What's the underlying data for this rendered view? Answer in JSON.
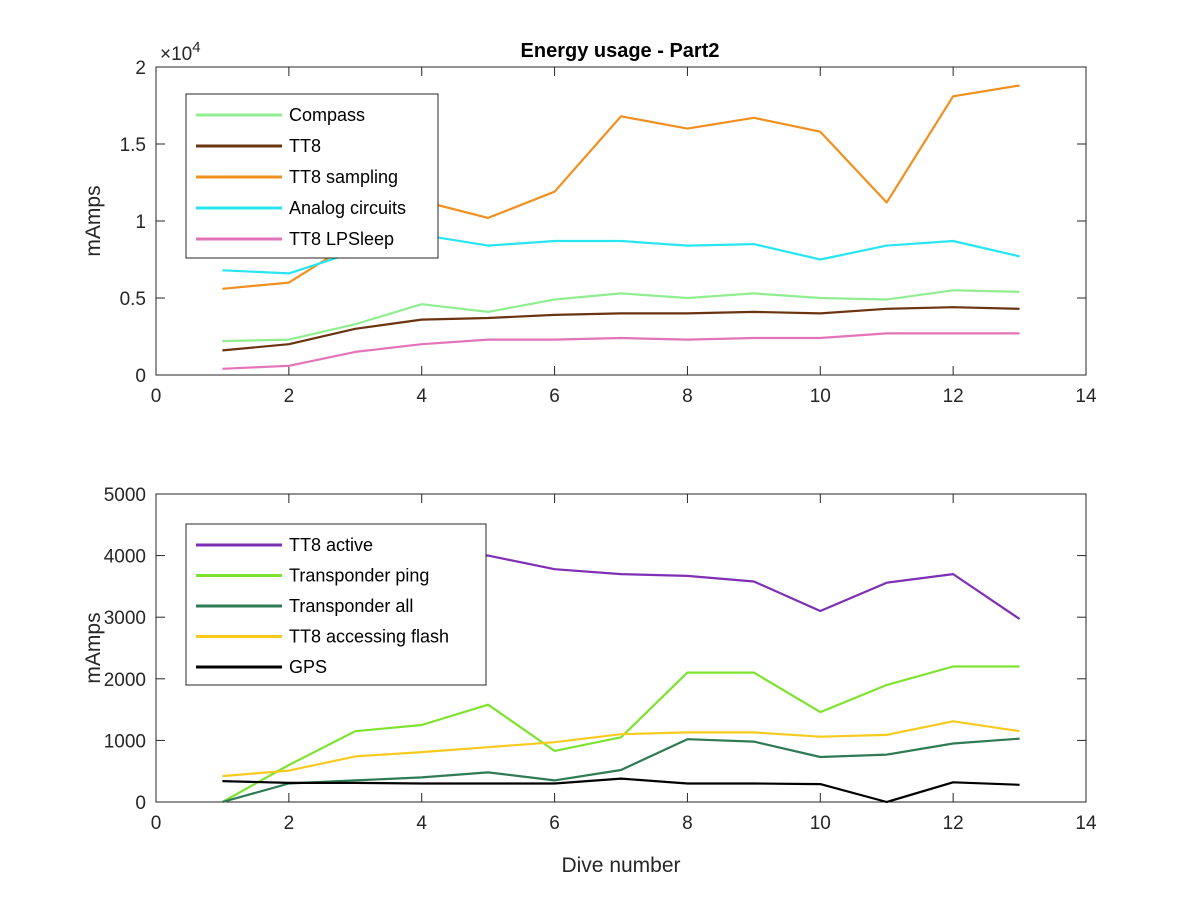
{
  "figure": {
    "title": "Energy usage - Part2"
  },
  "chart_data": [
    {
      "type": "line",
      "title": "Energy usage - Part2",
      "xlabel": "",
      "ylabel": "mAmps",
      "xlim": [
        0,
        14
      ],
      "ylim": [
        0,
        20000
      ],
      "xticks": [
        0,
        2,
        4,
        6,
        8,
        10,
        12,
        14
      ],
      "yticks": [
        0,
        5000,
        10000,
        15000,
        20000
      ],
      "ytick_labels": [
        "0",
        "0.5",
        "1",
        "1.5",
        "2"
      ],
      "y_exponent_base": "×10",
      "y_exponent_power": "4",
      "grid": false,
      "legend_position": "top-left",
      "x": [
        1,
        2,
        3,
        4,
        5,
        6,
        7,
        8,
        9,
        10,
        11,
        12,
        13
      ],
      "series": [
        {
          "name": "Compass",
          "color": "#90ee90",
          "values": [
            2200,
            2300,
            3300,
            4600,
            4100,
            4900,
            5300,
            5000,
            5300,
            5000,
            4900,
            5500,
            5400
          ]
        },
        {
          "name": "TT8",
          "color": "#6b3410",
          "values": [
            1600,
            2000,
            3000,
            3600,
            3700,
            3900,
            4000,
            4000,
            4100,
            4000,
            4300,
            4400,
            4300
          ]
        },
        {
          "name": "TT8 sampling",
          "color": "#f0901e",
          "values": [
            5600,
            6000,
            8700,
            11300,
            10200,
            11900,
            16800,
            16000,
            16700,
            15800,
            11200,
            18100,
            18800
          ]
        },
        {
          "name": "Analog circuits",
          "color": "#27e6ef",
          "values": [
            6800,
            6600,
            8000,
            9100,
            8400,
            8700,
            8700,
            8400,
            8500,
            7500,
            8400,
            8700,
            7700
          ]
        },
        {
          "name": "TT8 LPSleep",
          "color": "#e374b9",
          "values": [
            400,
            600,
            1500,
            2000,
            2300,
            2300,
            2400,
            2300,
            2400,
            2400,
            2700,
            2700,
            2700
          ]
        }
      ]
    },
    {
      "type": "line",
      "title": "",
      "xlabel": "Dive number",
      "ylabel": "mAmps",
      "xlim": [
        0,
        14
      ],
      "ylim": [
        0,
        5000
      ],
      "xticks": [
        0,
        2,
        4,
        6,
        8,
        10,
        12,
        14
      ],
      "yticks": [
        0,
        1000,
        2000,
        3000,
        4000,
        5000
      ],
      "ytick_labels": [
        "0",
        "1000",
        "2000",
        "3000",
        "4000",
        "5000"
      ],
      "grid": false,
      "legend_position": "top-left",
      "x": [
        1,
        2,
        3,
        4,
        5,
        6,
        7,
        8,
        9,
        10,
        11,
        12,
        13
      ],
      "series": [
        {
          "name": "TT8 active",
          "color": "#7e2fb3",
          "values": [
            4000,
            4000,
            4100,
            4100,
            4000,
            3780,
            3700,
            3670,
            3580,
            3100,
            3560,
            3700,
            2970
          ]
        },
        {
          "name": "Transponder ping",
          "color": "#7ee32f",
          "values": [
            0,
            600,
            1150,
            1250,
            1580,
            830,
            1050,
            2100,
            2100,
            1460,
            1900,
            2200,
            2200
          ]
        },
        {
          "name": "Transponder all",
          "color": "#2e7b55",
          "values": [
            0,
            300,
            350,
            400,
            480,
            350,
            520,
            1020,
            980,
            730,
            770,
            950,
            1030
          ]
        },
        {
          "name": "TT8 accessing flash",
          "color": "#f6cb1e",
          "values": [
            420,
            510,
            740,
            810,
            890,
            970,
            1100,
            1130,
            1130,
            1060,
            1090,
            1310,
            1150
          ]
        },
        {
          "name": "GPS",
          "color": "#000000",
          "values": [
            340,
            310,
            310,
            300,
            300,
            300,
            380,
            300,
            300,
            290,
            0,
            320,
            280
          ]
        }
      ]
    }
  ]
}
